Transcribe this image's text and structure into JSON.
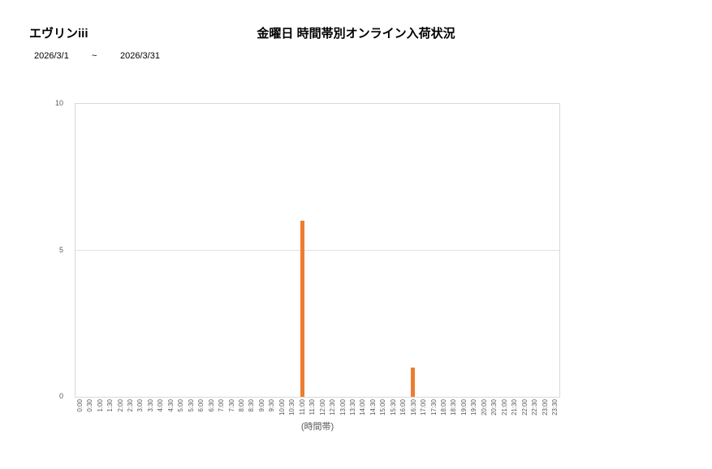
{
  "header": {
    "product_name": "エヴリンiii",
    "title": "金曜日 時間帯別オンライン入荷状況",
    "date_from": "2026/3/1",
    "date_separator": "~",
    "date_to": "2026/3/31"
  },
  "chart_data": {
    "type": "bar",
    "title": "金曜日 時間帯別オンライン入荷状況",
    "categories": [
      "0:00",
      "0:30",
      "1:00",
      "1:30",
      "2:00",
      "2:30",
      "3:00",
      "3:30",
      "4:00",
      "4:30",
      "5:00",
      "5:30",
      "6:00",
      "6:30",
      "7:00",
      "7:30",
      "8:00",
      "8:30",
      "9:00",
      "9:30",
      "10:00",
      "10:30",
      "11:00",
      "11:30",
      "12:00",
      "12:30",
      "13:00",
      "13:30",
      "14:00",
      "14:30",
      "15:00",
      "15:30",
      "16:00",
      "16:30",
      "17:00",
      "17:30",
      "18:00",
      "18:30",
      "19:00",
      "19:30",
      "20:00",
      "20:30",
      "21:00",
      "21:30",
      "22:00",
      "22:30",
      "23:00",
      "23:30"
    ],
    "values": [
      0,
      0,
      0,
      0,
      0,
      0,
      0,
      0,
      0,
      0,
      0,
      0,
      0,
      0,
      0,
      0,
      0,
      0,
      0,
      0,
      0,
      0,
      6,
      0,
      0,
      0,
      0,
      0,
      0,
      0,
      0,
      0,
      0,
      1,
      0,
      0,
      0,
      0,
      0,
      0,
      0,
      0,
      0,
      0,
      0,
      0,
      0,
      0
    ],
    "xlabel": "(時間帯)",
    "ylabel": "",
    "ylim": [
      0,
      10
    ],
    "yticks": [
      0,
      5,
      10
    ],
    "legend": "none",
    "grid": "horizontal",
    "bar_color": "#ED7D31",
    "axis_color": "#D9D9D9",
    "gridline_color": "#E2E2E2",
    "tick_label_color": "#595959"
  }
}
